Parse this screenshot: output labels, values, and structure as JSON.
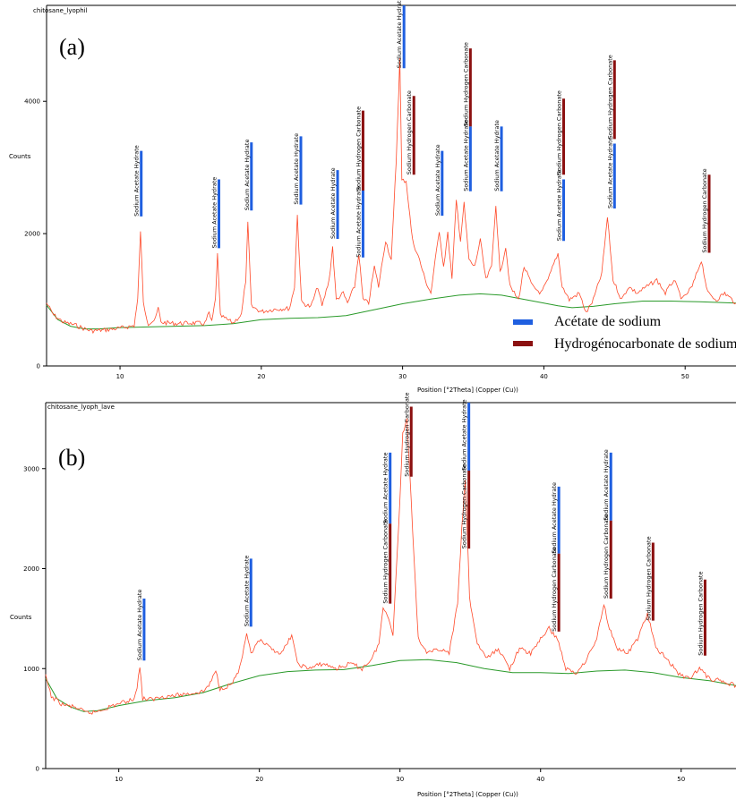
{
  "colors": {
    "sodium_acetate": "#1f5fe0",
    "sodium_hydrogen_carbonate": "#8b1010",
    "trace": "#ff4a2a",
    "baseline": "#2a9a2a"
  },
  "legend": [
    {
      "label": "Acétate de sodium",
      "color_key": "sodium_acetate"
    },
    {
      "label": "Hydrogénocarbonate de sodium",
      "color_key": "sodium_hydrogen_carbonate"
    }
  ],
  "chart_data": [
    {
      "type": "line",
      "panel_label": "(a)",
      "sample_name": "chitosane_lyophil",
      "xlabel": "Position [°2Theta] (Copper (Cu))",
      "ylabel": "Counts",
      "xlim": [
        4.8,
        53.6
      ],
      "ylim": [
        0,
        5450
      ],
      "xticks": [
        10,
        20,
        30,
        40,
        50
      ],
      "yticks": [
        0,
        2000,
        4000
      ],
      "trace_points": [
        [
          4.8,
          950
        ],
        [
          5.3,
          770
        ],
        [
          6,
          660
        ],
        [
          6.8,
          620
        ],
        [
          7.5,
          560
        ],
        [
          8,
          530
        ],
        [
          9,
          545
        ],
        [
          10,
          570
        ],
        [
          11,
          610
        ],
        [
          11.25,
          1000
        ],
        [
          11.45,
          2050
        ],
        [
          11.65,
          950
        ],
        [
          12,
          640
        ],
        [
          12.5,
          700
        ],
        [
          12.7,
          880
        ],
        [
          12.9,
          660
        ],
        [
          14,
          640
        ],
        [
          15,
          650
        ],
        [
          16,
          640
        ],
        [
          16.3,
          800
        ],
        [
          16.5,
          660
        ],
        [
          16.75,
          1000
        ],
        [
          16.9,
          1680
        ],
        [
          17.1,
          760
        ],
        [
          18,
          650
        ],
        [
          18.6,
          780
        ],
        [
          18.9,
          1300
        ],
        [
          19.05,
          2150
        ],
        [
          19.3,
          900
        ],
        [
          20,
          820
        ],
        [
          21,
          860
        ],
        [
          22,
          870
        ],
        [
          22.35,
          1200
        ],
        [
          22.55,
          2280
        ],
        [
          22.85,
          960
        ],
        [
          23.5,
          890
        ],
        [
          24,
          1200
        ],
        [
          24.3,
          900
        ],
        [
          24.8,
          1300
        ],
        [
          25.05,
          1800
        ],
        [
          25.3,
          1000
        ],
        [
          25.8,
          1100
        ],
        [
          26.1,
          950
        ],
        [
          26.6,
          1200
        ],
        [
          26.9,
          1700
        ],
        [
          27.2,
          1000
        ],
        [
          27.6,
          950
        ],
        [
          28,
          1500
        ],
        [
          28.3,
          1200
        ],
        [
          28.8,
          1900
        ],
        [
          29.2,
          1600
        ],
        [
          29.55,
          3100
        ],
        [
          29.8,
          4640
        ],
        [
          29.95,
          2800
        ],
        [
          30.25,
          2800
        ],
        [
          30.7,
          1900
        ],
        [
          31.2,
          1600
        ],
        [
          31.6,
          1300
        ],
        [
          32,
          1100
        ],
        [
          32.6,
          2050
        ],
        [
          32.9,
          1500
        ],
        [
          33.2,
          2000
        ],
        [
          33.5,
          1300
        ],
        [
          33.8,
          2500
        ],
        [
          34.1,
          1900
        ],
        [
          34.35,
          2450
        ],
        [
          34.7,
          1600
        ],
        [
          35.1,
          1500
        ],
        [
          35.5,
          1900
        ],
        [
          35.9,
          1300
        ],
        [
          36.3,
          1500
        ],
        [
          36.6,
          2450
        ],
        [
          36.9,
          1400
        ],
        [
          37.3,
          1800
        ],
        [
          37.6,
          1200
        ],
        [
          38.2,
          1000
        ],
        [
          38.6,
          1500
        ],
        [
          39.2,
          1200
        ],
        [
          39.8,
          1100
        ],
        [
          40.3,
          1300
        ],
        [
          40.8,
          1600
        ],
        [
          41,
          1700
        ],
        [
          41.3,
          1200
        ],
        [
          41.8,
          1000
        ],
        [
          42.5,
          1100
        ],
        [
          43,
          800
        ],
        [
          43.5,
          1000
        ],
        [
          44.1,
          1400
        ],
        [
          44.5,
          2250
        ],
        [
          44.9,
          1300
        ],
        [
          45.5,
          1000
        ],
        [
          46,
          1200
        ],
        [
          46.6,
          1100
        ],
        [
          47.3,
          1200
        ],
        [
          48,
          1300
        ],
        [
          48.6,
          1100
        ],
        [
          49.2,
          1300
        ],
        [
          49.8,
          1000
        ],
        [
          50.5,
          1200
        ],
        [
          51.15,
          1600
        ],
        [
          51.6,
          1100
        ],
        [
          52.2,
          1000
        ],
        [
          52.8,
          1100
        ],
        [
          53.6,
          950
        ]
      ],
      "baseline_points": [
        [
          4.8,
          920
        ],
        [
          5.6,
          700
        ],
        [
          6.5,
          600
        ],
        [
          7.5,
          560
        ],
        [
          8.5,
          560
        ],
        [
          10,
          580
        ],
        [
          12,
          590
        ],
        [
          14,
          600
        ],
        [
          16,
          610
        ],
        [
          18,
          640
        ],
        [
          20,
          700
        ],
        [
          22,
          720
        ],
        [
          24,
          730
        ],
        [
          26,
          760
        ],
        [
          28,
          850
        ],
        [
          30,
          940
        ],
        [
          32,
          1010
        ],
        [
          34,
          1070
        ],
        [
          35.5,
          1090
        ],
        [
          37,
          1070
        ],
        [
          39,
          990
        ],
        [
          41,
          910
        ],
        [
          42,
          880
        ],
        [
          43.5,
          900
        ],
        [
          45,
          940
        ],
        [
          47,
          980
        ],
        [
          49,
          980
        ],
        [
          51,
          970
        ],
        [
          53.6,
          950
        ]
      ],
      "markers": [
        {
          "phase": "acetate",
          "x": 11.5,
          "y_top": 3250,
          "y_bottom": 2260,
          "label": "Sodium Acetate Hydrate"
        },
        {
          "phase": "acetate",
          "x": 17.0,
          "y_top": 2820,
          "y_bottom": 1780,
          "label": "Sodium Acetate Hydrate"
        },
        {
          "phase": "acetate",
          "x": 19.3,
          "y_top": 3380,
          "y_bottom": 2350,
          "label": "Sodium Acetate Hydrate"
        },
        {
          "phase": "acetate",
          "x": 22.8,
          "y_top": 3470,
          "y_bottom": 2440,
          "label": "Sodium Acetate Hydrate"
        },
        {
          "phase": "acetate",
          "x": 25.4,
          "y_top": 2960,
          "y_bottom": 1920,
          "label": "Sodium Acetate Hydrate"
        },
        {
          "phase": "carbonate",
          "x": 27.2,
          "y_top": 3860,
          "y_bottom": 2650,
          "label": "Sodium Hydrogen Carbonate"
        },
        {
          "phase": "acetate",
          "x": 27.2,
          "y_top": 2650,
          "y_bottom": 1640,
          "label": "Sodium Acetate Hydrate"
        },
        {
          "phase": "acetate",
          "x": 30.1,
          "y_top": 5450,
          "y_bottom": 4500,
          "label": "Sodium Acetate Hydrate"
        },
        {
          "phase": "carbonate",
          "x": 30.8,
          "y_top": 4080,
          "y_bottom": 2890,
          "label": "Sodium Hydrogen Carbonate"
        },
        {
          "phase": "acetate",
          "x": 32.8,
          "y_top": 3250,
          "y_bottom": 2270,
          "label": "Sodium Acetate Hydrate"
        },
        {
          "phase": "carbonate",
          "x": 34.8,
          "y_top": 4800,
          "y_bottom": 3620,
          "label": "Sodium Hydrogen Carbonate"
        },
        {
          "phase": "acetate",
          "x": 34.8,
          "y_top": 3620,
          "y_bottom": 2640,
          "label": "Sodium Acetate Hydrate"
        },
        {
          "phase": "acetate",
          "x": 37.0,
          "y_top": 3620,
          "y_bottom": 2640,
          "label": "Sodium Acetate Hydrate"
        },
        {
          "phase": "carbonate",
          "x": 41.4,
          "y_top": 4040,
          "y_bottom": 2890,
          "label": "Sodium Hydrogen Carbonate"
        },
        {
          "phase": "acetate",
          "x": 41.4,
          "y_top": 2820,
          "y_bottom": 1890,
          "label": "Sodium Acetate Hydrate"
        },
        {
          "phase": "carbonate",
          "x": 45.0,
          "y_top": 4620,
          "y_bottom": 3430,
          "label": "Sodium Hydrogen Carbonate"
        },
        {
          "phase": "acetate",
          "x": 45.0,
          "y_top": 3360,
          "y_bottom": 2380,
          "label": "Sodium Acetate Hydrate"
        },
        {
          "phase": "carbonate",
          "x": 51.7,
          "y_top": 2890,
          "y_bottom": 1710,
          "label": "Sodium Hydrogen Carbonate"
        }
      ]
    },
    {
      "type": "line",
      "panel_label": "(b)",
      "sample_name": "chitosane_lyoph_lave",
      "xlabel": "Position [°2Theta] (Copper (Cu))",
      "ylabel": "Counts",
      "xlim": [
        4.8,
        53.9
      ],
      "ylim": [
        0,
        3660
      ],
      "xticks": [
        10,
        20,
        30,
        40,
        50
      ],
      "yticks": [
        0,
        1000,
        2000,
        3000
      ],
      "trace_points": [
        [
          4.8,
          920
        ],
        [
          5.2,
          720
        ],
        [
          6,
          640
        ],
        [
          7,
          610
        ],
        [
          7.6,
          560
        ],
        [
          8.2,
          560
        ],
        [
          9,
          600
        ],
        [
          10,
          650
        ],
        [
          11,
          690
        ],
        [
          11.3,
          800
        ],
        [
          11.5,
          1030
        ],
        [
          11.7,
          700
        ],
        [
          12.4,
          690
        ],
        [
          13,
          720
        ],
        [
          14,
          730
        ],
        [
          15,
          750
        ],
        [
          16,
          770
        ],
        [
          16.5,
          850
        ],
        [
          16.9,
          980
        ],
        [
          17.2,
          800
        ],
        [
          18,
          840
        ],
        [
          18.6,
          1000
        ],
        [
          19.1,
          1330
        ],
        [
          19.4,
          1150
        ],
        [
          20,
          1280
        ],
        [
          20.8,
          1200
        ],
        [
          21.6,
          1150
        ],
        [
          22.3,
          1340
        ],
        [
          22.7,
          1050
        ],
        [
          23.5,
          1000
        ],
        [
          24.5,
          1050
        ],
        [
          25.5,
          1000
        ],
        [
          26.5,
          1050
        ],
        [
          27.3,
          1000
        ],
        [
          28,
          1100
        ],
        [
          28.5,
          1250
        ],
        [
          28.8,
          1600
        ],
        [
          29.1,
          1550
        ],
        [
          29.5,
          1350
        ],
        [
          29.9,
          2400
        ],
        [
          30.2,
          3350
        ],
        [
          30.5,
          3500
        ],
        [
          30.9,
          2400
        ],
        [
          31.3,
          1300
        ],
        [
          32,
          1150
        ],
        [
          32.8,
          1200
        ],
        [
          33.5,
          1150
        ],
        [
          34.1,
          1650
        ],
        [
          34.4,
          2400
        ],
        [
          34.65,
          2900
        ],
        [
          34.95,
          1700
        ],
        [
          35.5,
          1250
        ],
        [
          36.2,
          1100
        ],
        [
          37,
          1200
        ],
        [
          37.8,
          1000
        ],
        [
          38.5,
          1200
        ],
        [
          39.3,
          1150
        ],
        [
          40,
          1300
        ],
        [
          40.6,
          1400
        ],
        [
          41.2,
          1300
        ],
        [
          41.8,
          1000
        ],
        [
          42.5,
          950
        ],
        [
          43.3,
          1100
        ],
        [
          44,
          1300
        ],
        [
          44.5,
          1650
        ],
        [
          44.9,
          1400
        ],
        [
          45.5,
          1200
        ],
        [
          46.2,
          1150
        ],
        [
          46.9,
          1300
        ],
        [
          47.6,
          1550
        ],
        [
          48.2,
          1200
        ],
        [
          49,
          1100
        ],
        [
          49.8,
          950
        ],
        [
          50.5,
          900
        ],
        [
          51.3,
          1000
        ],
        [
          52,
          900
        ],
        [
          52.8,
          880
        ],
        [
          53.9,
          830
        ]
      ],
      "baseline_points": [
        [
          4.8,
          900
        ],
        [
          5.6,
          700
        ],
        [
          6.5,
          620
        ],
        [
          7.5,
          570
        ],
        [
          8.5,
          580
        ],
        [
          10,
          630
        ],
        [
          12,
          680
        ],
        [
          14,
          710
        ],
        [
          16,
          760
        ],
        [
          18,
          850
        ],
        [
          20,
          930
        ],
        [
          22,
          970
        ],
        [
          24,
          985
        ],
        [
          26,
          990
        ],
        [
          28,
          1030
        ],
        [
          30,
          1080
        ],
        [
          32,
          1090
        ],
        [
          34,
          1060
        ],
        [
          36,
          1000
        ],
        [
          38,
          960
        ],
        [
          40,
          960
        ],
        [
          42,
          950
        ],
        [
          44,
          975
        ],
        [
          46,
          985
        ],
        [
          48,
          960
        ],
        [
          50,
          910
        ],
        [
          52,
          880
        ],
        [
          53.9,
          830
        ]
      ],
      "markers": [
        {
          "phase": "acetate",
          "x": 11.8,
          "y_top": 1700,
          "y_bottom": 1080,
          "label": "Sodium Acetate Hydrate"
        },
        {
          "phase": "acetate",
          "x": 19.4,
          "y_top": 2100,
          "y_bottom": 1420,
          "label": "Sodium Acetate Hydrate"
        },
        {
          "phase": "acetate",
          "x": 29.3,
          "y_top": 3160,
          "y_bottom": 2450,
          "label": "Sodium Acetate Hydrate"
        },
        {
          "phase": "carbonate",
          "x": 29.3,
          "y_top": 2450,
          "y_bottom": 1650,
          "label": "Sodium Hydrogen Carbonate"
        },
        {
          "phase": "carbonate",
          "x": 30.8,
          "y_top": 3620,
          "y_bottom": 2920,
          "label": "Sodium Hydrogen Carbonate"
        },
        {
          "phase": "acetate",
          "x": 34.9,
          "y_top": 3660,
          "y_bottom": 2980,
          "label": "Sodium Acetate Hydrate"
        },
        {
          "phase": "carbonate",
          "x": 34.9,
          "y_top": 2980,
          "y_bottom": 2200,
          "label": "Sodium Hydrogen Carbonate"
        },
        {
          "phase": "acetate",
          "x": 41.3,
          "y_top": 2820,
          "y_bottom": 2150,
          "label": "Sodium Acetate Hydrate"
        },
        {
          "phase": "carbonate",
          "x": 41.3,
          "y_top": 2150,
          "y_bottom": 1370,
          "label": "Sodium Hydrogen Carbonate"
        },
        {
          "phase": "acetate",
          "x": 45.0,
          "y_top": 3160,
          "y_bottom": 2480,
          "label": "Sodium Acetate Hydrate"
        },
        {
          "phase": "carbonate",
          "x": 45.0,
          "y_top": 2480,
          "y_bottom": 1700,
          "label": "Sodium Hydrogen Carbonate"
        },
        {
          "phase": "carbonate",
          "x": 48.0,
          "y_top": 2260,
          "y_bottom": 1480,
          "label": "Sodium Hydrogen Carbonate"
        },
        {
          "phase": "carbonate",
          "x": 51.7,
          "y_top": 1890,
          "y_bottom": 1130,
          "label": "Sodium Hydrogen Carbonate"
        }
      ]
    }
  ]
}
